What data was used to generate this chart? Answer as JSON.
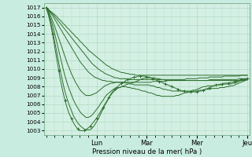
{
  "title": "",
  "xlabel": "Pression niveau de la mer( hPa )",
  "bg_color": "#c8ede0",
  "plot_bg_color": "#d4f0e4",
  "line_color": "#2d6e2d",
  "grid_color": "#aad4bc",
  "ylim": [
    1002.5,
    1017.5
  ],
  "yticks": [
    1003,
    1004,
    1005,
    1006,
    1007,
    1008,
    1009,
    1010,
    1011,
    1012,
    1013,
    1014,
    1015,
    1016,
    1017
  ],
  "day_labels": [
    "Lun",
    "Mar",
    "Mer",
    "Jeu"
  ],
  "day_positions": [
    24,
    48,
    72,
    96
  ],
  "n_steps": 97,
  "lines": [
    {
      "points": [
        1017.0,
        1016.8,
        1016.6,
        1016.4,
        1016.2,
        1016.0,
        1015.7,
        1015.5,
        1015.2,
        1015.0,
        1014.7,
        1014.5,
        1014.2,
        1014.0,
        1013.7,
        1013.5,
        1013.2,
        1013.0,
        1012.7,
        1012.5,
        1012.2,
        1012.0,
        1011.8,
        1011.6,
        1011.4,
        1011.2,
        1011.0,
        1010.8,
        1010.6,
        1010.4,
        1010.3,
        1010.1,
        1010.0,
        1009.9,
        1009.8,
        1009.7,
        1009.6,
        1009.6,
        1009.5,
        1009.5,
        1009.4,
        1009.4,
        1009.4,
        1009.3,
        1009.3,
        1009.3,
        1009.3,
        1009.3,
        1009.3,
        1009.3,
        1009.3,
        1009.3,
        1009.3,
        1009.3,
        1009.3,
        1009.3,
        1009.3,
        1009.3,
        1009.3,
        1009.3,
        1009.3,
        1009.3,
        1009.3,
        1009.3,
        1009.3,
        1009.3,
        1009.3,
        1009.3,
        1009.3,
        1009.3,
        1009.3,
        1009.3,
        1009.3,
        1009.3,
        1009.3,
        1009.3,
        1009.3,
        1009.3,
        1009.3,
        1009.3,
        1009.3,
        1009.3,
        1009.3,
        1009.3,
        1009.3,
        1009.3,
        1009.3,
        1009.3,
        1009.3,
        1009.3,
        1009.3,
        1009.3,
        1009.3,
        1009.3,
        1009.3,
        1009.3,
        1009.3
      ]
    },
    {
      "points": [
        1017.0,
        1016.8,
        1016.5,
        1016.3,
        1016.0,
        1015.7,
        1015.4,
        1015.1,
        1014.8,
        1014.5,
        1014.2,
        1013.9,
        1013.6,
        1013.3,
        1013.0,
        1012.7,
        1012.4,
        1012.1,
        1011.8,
        1011.5,
        1011.2,
        1010.9,
        1010.6,
        1010.4,
        1010.2,
        1010.0,
        1009.8,
        1009.7,
        1009.5,
        1009.4,
        1009.3,
        1009.2,
        1009.1,
        1009.0,
        1009.0,
        1008.9,
        1008.9,
        1008.9,
        1008.9,
        1008.8,
        1008.8,
        1008.8,
        1008.8,
        1008.8,
        1008.8,
        1008.8,
        1008.8,
        1008.8,
        1008.8,
        1008.8,
        1008.8,
        1008.8,
        1008.8,
        1008.8,
        1008.8,
        1008.8,
        1008.8,
        1008.8,
        1008.8,
        1008.8,
        1008.8,
        1008.8,
        1008.8,
        1008.8,
        1008.8,
        1008.8,
        1008.8,
        1008.9,
        1008.9,
        1008.9,
        1008.9,
        1008.9,
        1008.9,
        1009.0,
        1009.0,
        1009.0,
        1009.0,
        1009.0,
        1009.1,
        1009.1,
        1009.1,
        1009.1,
        1009.1,
        1009.1,
        1009.1,
        1009.2,
        1009.2,
        1009.2,
        1009.2,
        1009.2,
        1009.2,
        1009.2,
        1009.2,
        1009.3,
        1009.3,
        1009.3,
        1009.3
      ]
    },
    {
      "points": [
        1017.0,
        1016.7,
        1016.4,
        1016.1,
        1015.7,
        1015.3,
        1014.9,
        1014.5,
        1014.1,
        1013.7,
        1013.3,
        1012.9,
        1012.5,
        1012.1,
        1011.7,
        1011.3,
        1010.9,
        1010.6,
        1010.3,
        1010.0,
        1009.7,
        1009.5,
        1009.3,
        1009.1,
        1009.0,
        1008.9,
        1008.8,
        1008.7,
        1008.7,
        1008.6,
        1008.6,
        1008.6,
        1008.5,
        1008.5,
        1008.5,
        1008.5,
        1008.5,
        1008.5,
        1008.5,
        1008.5,
        1008.5,
        1008.5,
        1008.5,
        1008.5,
        1008.5,
        1008.5,
        1008.5,
        1008.5,
        1008.5,
        1008.5,
        1008.5,
        1008.6,
        1008.6,
        1008.6,
        1008.6,
        1008.6,
        1008.6,
        1008.6,
        1008.7,
        1008.7,
        1008.7,
        1008.7,
        1008.7,
        1008.7,
        1008.7,
        1008.7,
        1008.7,
        1008.7,
        1008.7,
        1008.7,
        1008.7,
        1008.7,
        1008.7,
        1008.7,
        1008.7,
        1008.7,
        1008.7,
        1008.7,
        1008.8,
        1008.8,
        1008.8,
        1008.8,
        1008.8,
        1008.8,
        1008.8,
        1008.8,
        1008.8,
        1008.8,
        1008.8,
        1008.8,
        1008.8,
        1008.8,
        1008.9,
        1008.9,
        1008.9,
        1008.9,
        1008.9
      ]
    },
    {
      "points": [
        1017.0,
        1016.6,
        1016.1,
        1015.5,
        1014.9,
        1014.2,
        1013.5,
        1012.8,
        1012.1,
        1011.4,
        1010.7,
        1010.1,
        1009.5,
        1009.0,
        1008.5,
        1008.1,
        1007.7,
        1007.4,
        1007.2,
        1007.0,
        1007.0,
        1007.0,
        1007.1,
        1007.2,
        1007.3,
        1007.5,
        1007.7,
        1007.9,
        1008.1,
        1008.2,
        1008.3,
        1008.4,
        1008.4,
        1008.5,
        1008.5,
        1008.5,
        1008.5,
        1008.5,
        1008.4,
        1008.4,
        1008.3,
        1008.3,
        1008.2,
        1008.2,
        1008.2,
        1008.2,
        1008.2,
        1008.2,
        1008.2,
        1008.2,
        1008.1,
        1008.1,
        1008.0,
        1007.9,
        1007.9,
        1007.8,
        1007.7,
        1007.7,
        1007.6,
        1007.6,
        1007.5,
        1007.5,
        1007.5,
        1007.5,
        1007.5,
        1007.5,
        1007.5,
        1007.5,
        1007.5,
        1007.5,
        1007.6,
        1007.6,
        1007.7,
        1007.8,
        1007.9,
        1008.0,
        1008.0,
        1008.1,
        1008.1,
        1008.1,
        1008.1,
        1008.2,
        1008.2,
        1008.2,
        1008.2,
        1008.3,
        1008.3,
        1008.3,
        1008.3,
        1008.4,
        1008.4,
        1008.5,
        1008.6,
        1008.7,
        1008.8,
        1008.8,
        1008.9
      ]
    },
    {
      "points": [
        1017.0,
        1016.5,
        1015.8,
        1015.0,
        1014.1,
        1013.1,
        1012.1,
        1011.1,
        1010.1,
        1009.2,
        1008.4,
        1007.7,
        1007.1,
        1006.5,
        1006.0,
        1005.6,
        1005.2,
        1004.9,
        1004.7,
        1004.5,
        1004.5,
        1004.6,
        1004.8,
        1005.1,
        1005.4,
        1005.7,
        1006.1,
        1006.4,
        1006.8,
        1007.1,
        1007.3,
        1007.5,
        1007.7,
        1007.8,
        1007.9,
        1007.9,
        1008.0,
        1008.0,
        1008.0,
        1007.9,
        1007.9,
        1007.8,
        1007.8,
        1007.7,
        1007.7,
        1007.6,
        1007.5,
        1007.5,
        1007.4,
        1007.3,
        1007.3,
        1007.2,
        1007.1,
        1007.0,
        1007.0,
        1006.9,
        1006.9,
        1006.9,
        1006.9,
        1006.9,
        1006.9,
        1006.9,
        1007.0,
        1007.0,
        1007.1,
        1007.2,
        1007.3,
        1007.3,
        1007.4,
        1007.4,
        1007.5,
        1007.5,
        1007.5,
        1007.6,
        1007.6,
        1007.6,
        1007.7,
        1007.7,
        1007.7,
        1007.8,
        1007.8,
        1007.8,
        1007.8,
        1007.9,
        1007.9,
        1007.9,
        1008.0,
        1008.0,
        1008.1,
        1008.1,
        1008.2,
        1008.3,
        1008.4,
        1008.5,
        1008.6,
        1008.7,
        1008.8
      ]
    },
    {
      "points": [
        1017.0,
        1016.3,
        1015.4,
        1014.4,
        1013.2,
        1012.0,
        1010.7,
        1009.5,
        1008.4,
        1007.4,
        1006.6,
        1005.9,
        1005.3,
        1004.7,
        1004.3,
        1003.9,
        1003.6,
        1003.4,
        1003.2,
        1003.1,
        1003.1,
        1003.1,
        1003.3,
        1003.6,
        1004.0,
        1004.4,
        1004.9,
        1005.4,
        1005.9,
        1006.3,
        1006.8,
        1007.1,
        1007.4,
        1007.6,
        1007.8,
        1007.9,
        1008.0,
        1008.1,
        1008.2,
        1008.3,
        1008.4,
        1008.4,
        1008.5,
        1008.6,
        1008.7,
        1008.8,
        1008.9,
        1009.0,
        1009.0,
        1009.0,
        1009.0,
        1009.0,
        1009.0,
        1008.9,
        1008.9,
        1008.8,
        1008.8,
        1008.7,
        1008.7,
        1008.7,
        1008.7,
        1008.7,
        1008.7,
        1008.7,
        1008.7,
        1008.7,
        1008.7,
        1008.7,
        1008.7,
        1008.7,
        1008.7,
        1008.7,
        1008.7,
        1008.7,
        1008.7,
        1008.7,
        1008.7,
        1008.7,
        1008.7,
        1008.7,
        1008.7,
        1008.7,
        1008.7,
        1008.7,
        1008.7,
        1008.7,
        1008.7,
        1008.7,
        1008.7,
        1008.7,
        1008.7,
        1008.7,
        1008.7,
        1008.7,
        1008.7,
        1008.7,
        1008.8
      ]
    },
    {
      "points": [
        1017.0,
        1016.2,
        1015.2,
        1014.0,
        1012.6,
        1011.2,
        1009.8,
        1008.5,
        1007.4,
        1006.4,
        1005.6,
        1004.9,
        1004.4,
        1003.9,
        1003.5,
        1003.2,
        1003.0,
        1003.0,
        1003.0,
        1003.1,
        1003.3,
        1003.5,
        1003.8,
        1004.1,
        1004.4,
        1004.8,
        1005.2,
        1005.6,
        1006.0,
        1006.4,
        1006.8,
        1007.2,
        1007.5,
        1007.8,
        1008.0,
        1008.2,
        1008.4,
        1008.5,
        1008.7,
        1008.8,
        1008.9,
        1009.0,
        1009.1,
        1009.1,
        1009.2,
        1009.2,
        1009.2,
        1009.2,
        1009.1,
        1009.1,
        1009.0,
        1008.9,
        1008.8,
        1008.7,
        1008.6,
        1008.5,
        1008.4,
        1008.3,
        1008.2,
        1008.1,
        1008.0,
        1007.9,
        1007.8,
        1007.7,
        1007.6,
        1007.5,
        1007.5,
        1007.4,
        1007.4,
        1007.4,
        1007.4,
        1007.4,
        1007.4,
        1007.5,
        1007.5,
        1007.6,
        1007.7,
        1007.8,
        1007.9,
        1008.0,
        1008.1,
        1008.2,
        1008.2,
        1008.3,
        1008.3,
        1008.4,
        1008.4,
        1008.4,
        1008.5,
        1008.5,
        1008.6,
        1008.6,
        1008.7,
        1008.8,
        1008.8,
        1008.9,
        1008.9
      ]
    }
  ],
  "marker_lines": [
    6
  ],
  "marker_style": "+",
  "marker_size": 2.5,
  "marker_every": 3
}
